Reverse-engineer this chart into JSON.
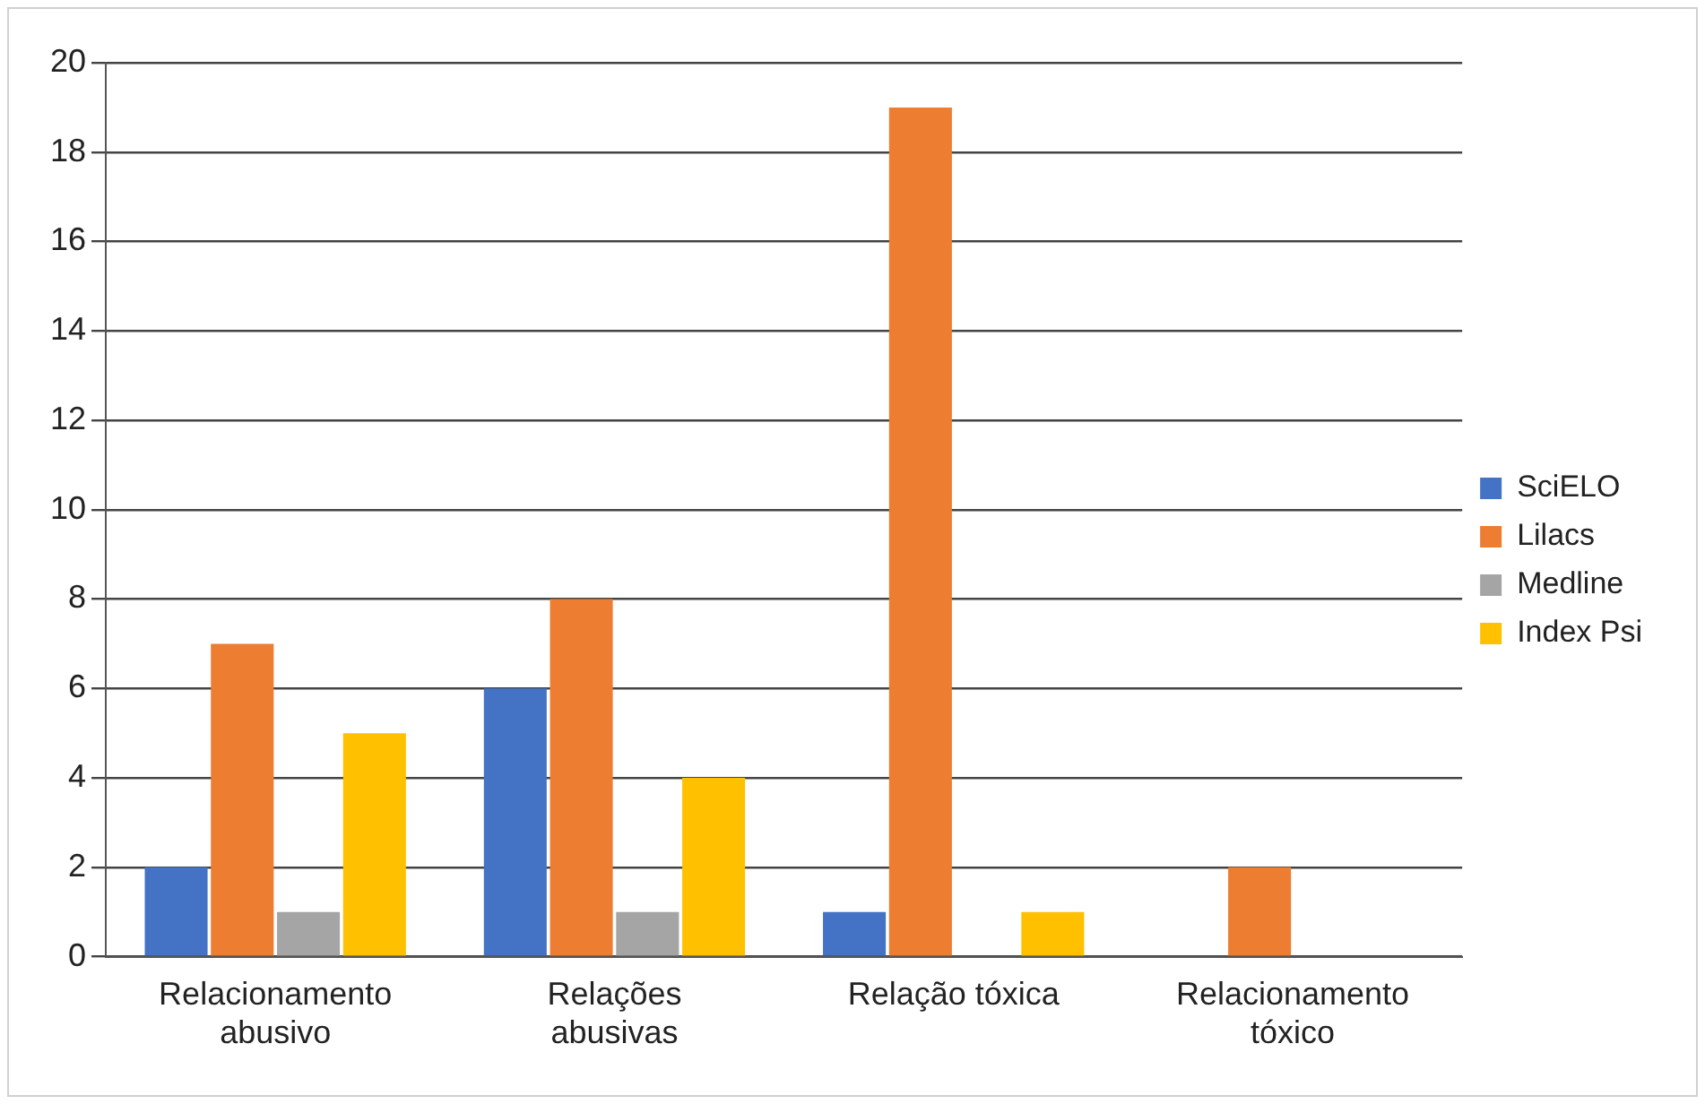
{
  "chart_data": {
    "type": "bar",
    "categories": [
      "Relacionamento abusivo",
      "Relações abusivas",
      "Relação tóxica",
      "Relacionamento tóxico"
    ],
    "series": [
      {
        "name": "SciELO",
        "color": "#4472c4",
        "values": [
          2,
          6,
          1,
          0
        ]
      },
      {
        "name": "Lilacs",
        "color": "#ed7d31",
        "values": [
          7,
          8,
          19,
          2
        ]
      },
      {
        "name": "Medline",
        "color": "#a5a5a5",
        "values": [
          1,
          1,
          0,
          0
        ]
      },
      {
        "name": "Index Psi",
        "color": "#ffc000",
        "values": [
          5,
          4,
          1,
          0
        ]
      }
    ],
    "ylim": [
      0,
      20
    ],
    "yticks": [
      0,
      2,
      4,
      6,
      8,
      10,
      12,
      14,
      16,
      18,
      20
    ],
    "grid": "y",
    "legend": "right"
  }
}
